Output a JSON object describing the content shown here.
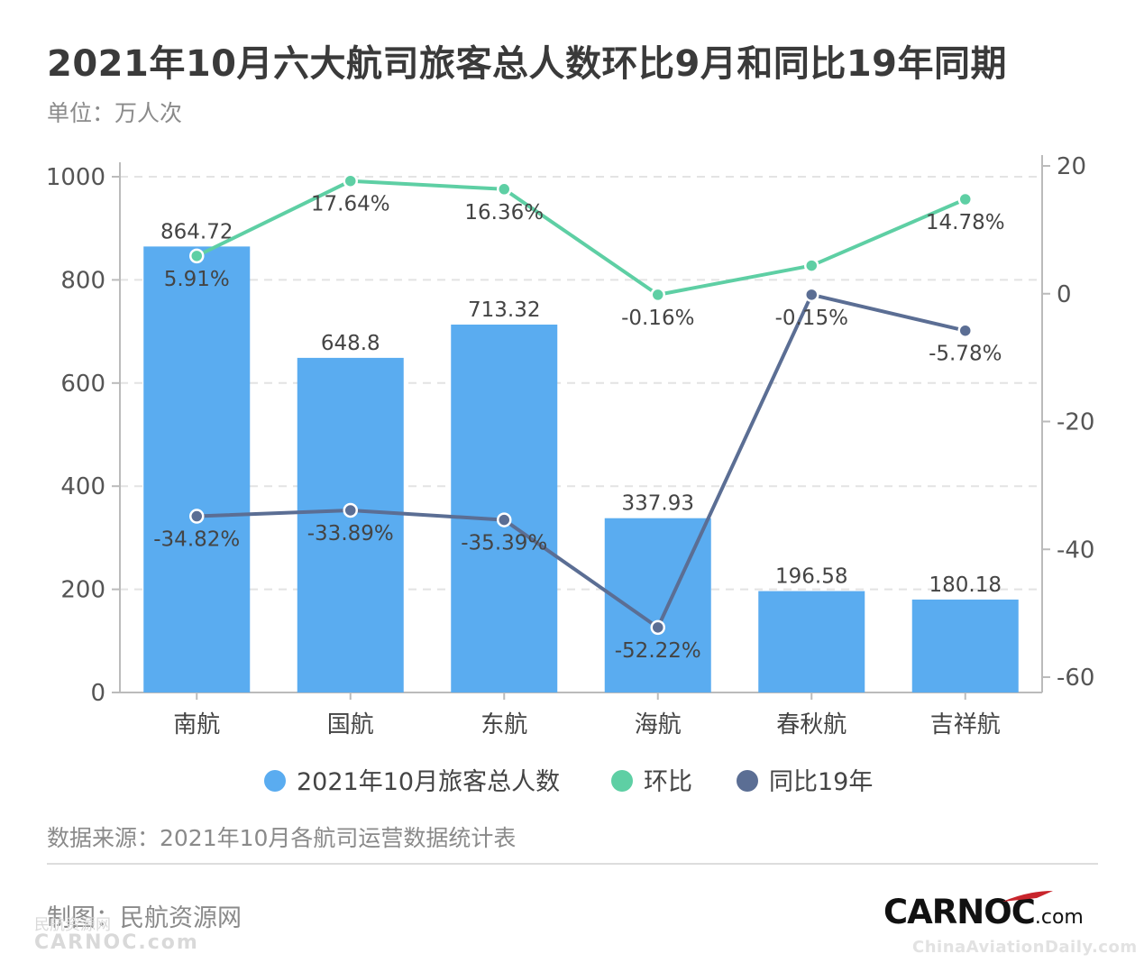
{
  "header": {
    "title": "2021年10月六大航司旅客总人数环比9月和同比19年同期",
    "unit": "单位：万人次"
  },
  "footer": {
    "source": "数据来源：2021年10月各航司运营数据统计表",
    "maker": "制图：民航资源网",
    "logo_main": "CARNOC",
    "logo_suffix": ".com",
    "watermark_left_top": "民航资源网",
    "watermark_left_bottom": "CARNOC.com",
    "watermark_right": "ChinaAviationDaily.com"
  },
  "colors": {
    "bar": "#5aacf0",
    "mom": "#5ecfa4",
    "yoy": "#5b6e94",
    "grid": "#e3e3e3",
    "axis": "#bbbbbb"
  },
  "chart_data": {
    "type": "bar",
    "categories": [
      "南航",
      "国航",
      "东航",
      "海航",
      "春秋航",
      "吉祥航"
    ],
    "y_left": {
      "min": 0,
      "max": 1000,
      "ticks": [
        0,
        200,
        400,
        600,
        800,
        1000
      ]
    },
    "y_right": {
      "min": -62,
      "max": 20,
      "ticks": [
        20,
        0,
        -20,
        -40,
        -60
      ]
    },
    "grid": "dashed horizontal",
    "legend_position": "bottom",
    "series": [
      {
        "name": "2021年10月旅客总人数",
        "kind": "bar",
        "axis": "left",
        "values": [
          864.72,
          648.8,
          713.32,
          337.93,
          196.58,
          180.18
        ],
        "labels": [
          "864.72",
          "648.8",
          "713.32",
          "337.93",
          "196.58",
          "180.18"
        ]
      },
      {
        "name": "环比",
        "kind": "line",
        "axis": "right",
        "values": [
          5.91,
          17.64,
          16.36,
          -0.16,
          4.4,
          14.78
        ],
        "labels": [
          "5.91%",
          "17.64%",
          "16.36%",
          "-0.16%",
          "",
          "14.78%"
        ]
      },
      {
        "name": "同比19年",
        "kind": "line",
        "axis": "right",
        "values": [
          -34.82,
          -33.89,
          -35.39,
          -52.22,
          -0.15,
          -5.78
        ],
        "labels": [
          "-34.82%",
          "-33.89%",
          "-35.39%",
          "-52.22%",
          "-0.15%",
          "-5.78%"
        ]
      }
    ]
  }
}
